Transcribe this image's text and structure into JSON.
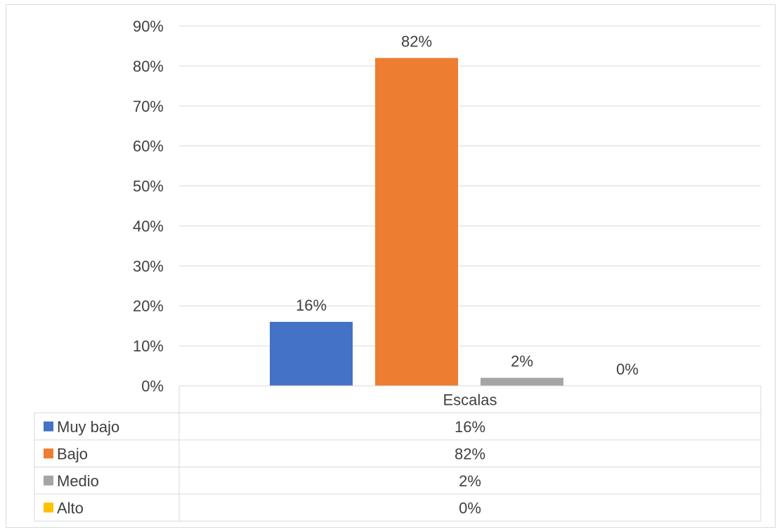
{
  "chart_data": {
    "type": "bar",
    "categories": [
      "Escalas"
    ],
    "series": [
      {
        "name": "Muy bajo",
        "values": [
          16
        ],
        "label": "16%",
        "color": "#4472c4"
      },
      {
        "name": "Bajo",
        "values": [
          82
        ],
        "label": "82%",
        "color": "#ed7d31"
      },
      {
        "name": "Medio",
        "values": [
          2
        ],
        "label": "2%",
        "color": "#a5a5a5"
      },
      {
        "name": "Alto",
        "values": [
          0
        ],
        "label": "0%",
        "color": "#ffc000"
      }
    ],
    "ylim": [
      0,
      90
    ],
    "yticks": [
      "0%",
      "10%",
      "20%",
      "30%",
      "40%",
      "50%",
      "60%",
      "70%",
      "80%",
      "90%"
    ],
    "grid": true,
    "legend": "data-table-left",
    "data_table": true
  }
}
